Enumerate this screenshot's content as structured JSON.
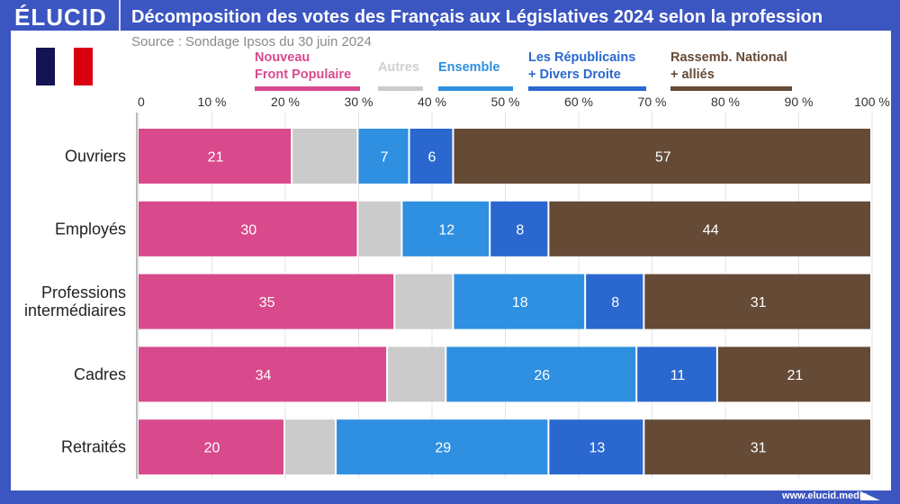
{
  "brand": "ÉLUCID",
  "footer": "www.elucid.media",
  "flag_colors": [
    "#141452",
    "#ffffff",
    "#d90012"
  ],
  "chart_data": {
    "type": "bar",
    "orientation": "horizontal-stacked",
    "title": "Décomposition des votes des Français aux Législatives 2024 selon la profession",
    "subtitle": "Source : Sondage Ipsos du 30 juin 2024",
    "categories": [
      "Ouvriers",
      "Employés",
      "Professions intermédiaires",
      "Cadres",
      "Retraités"
    ],
    "category_lines": [
      [
        "Ouvriers"
      ],
      [
        "Employés"
      ],
      [
        "Professions",
        "intermédiaires"
      ],
      [
        "Cadres"
      ],
      [
        "Retraités"
      ]
    ],
    "xlim": [
      0,
      100
    ],
    "xticks": [
      "0",
      "10 %",
      "20 %",
      "30 %",
      "40 %",
      "50 %",
      "60 %",
      "70 %",
      "80 %",
      "90 %",
      "100 %"
    ],
    "grid": true,
    "legend_placement": "top",
    "series": [
      {
        "name": "Nouveau Front Populaire",
        "legend_lines": [
          "Nouveau",
          "Front Populaire"
        ],
        "color": "#d94a8c",
        "values": [
          21,
          30,
          35,
          34,
          20
        ],
        "labeled": true
      },
      {
        "name": "Autres",
        "legend_lines": [
          "Autres"
        ],
        "color": "#cbcbcb",
        "values": [
          9,
          6,
          8,
          8,
          7
        ],
        "labeled": false
      },
      {
        "name": "Ensemble",
        "legend_lines": [
          "Ensemble"
        ],
        "color": "#2f8fe0",
        "values": [
          7,
          12,
          18,
          26,
          29
        ],
        "labeled": true
      },
      {
        "name": "Les Républicains + Divers Droite",
        "legend_lines": [
          "Les Républicains",
          "+ Divers Droite"
        ],
        "color": "#2a68cf",
        "values": [
          6,
          8,
          8,
          11,
          13
        ],
        "labeled": true
      },
      {
        "name": "Rassemb. National + alliés",
        "legend_lines": [
          "Rassemb. National",
          " + alliés"
        ],
        "color": "#654a36",
        "values": [
          57,
          44,
          31,
          21,
          31
        ],
        "labeled": true
      }
    ]
  }
}
